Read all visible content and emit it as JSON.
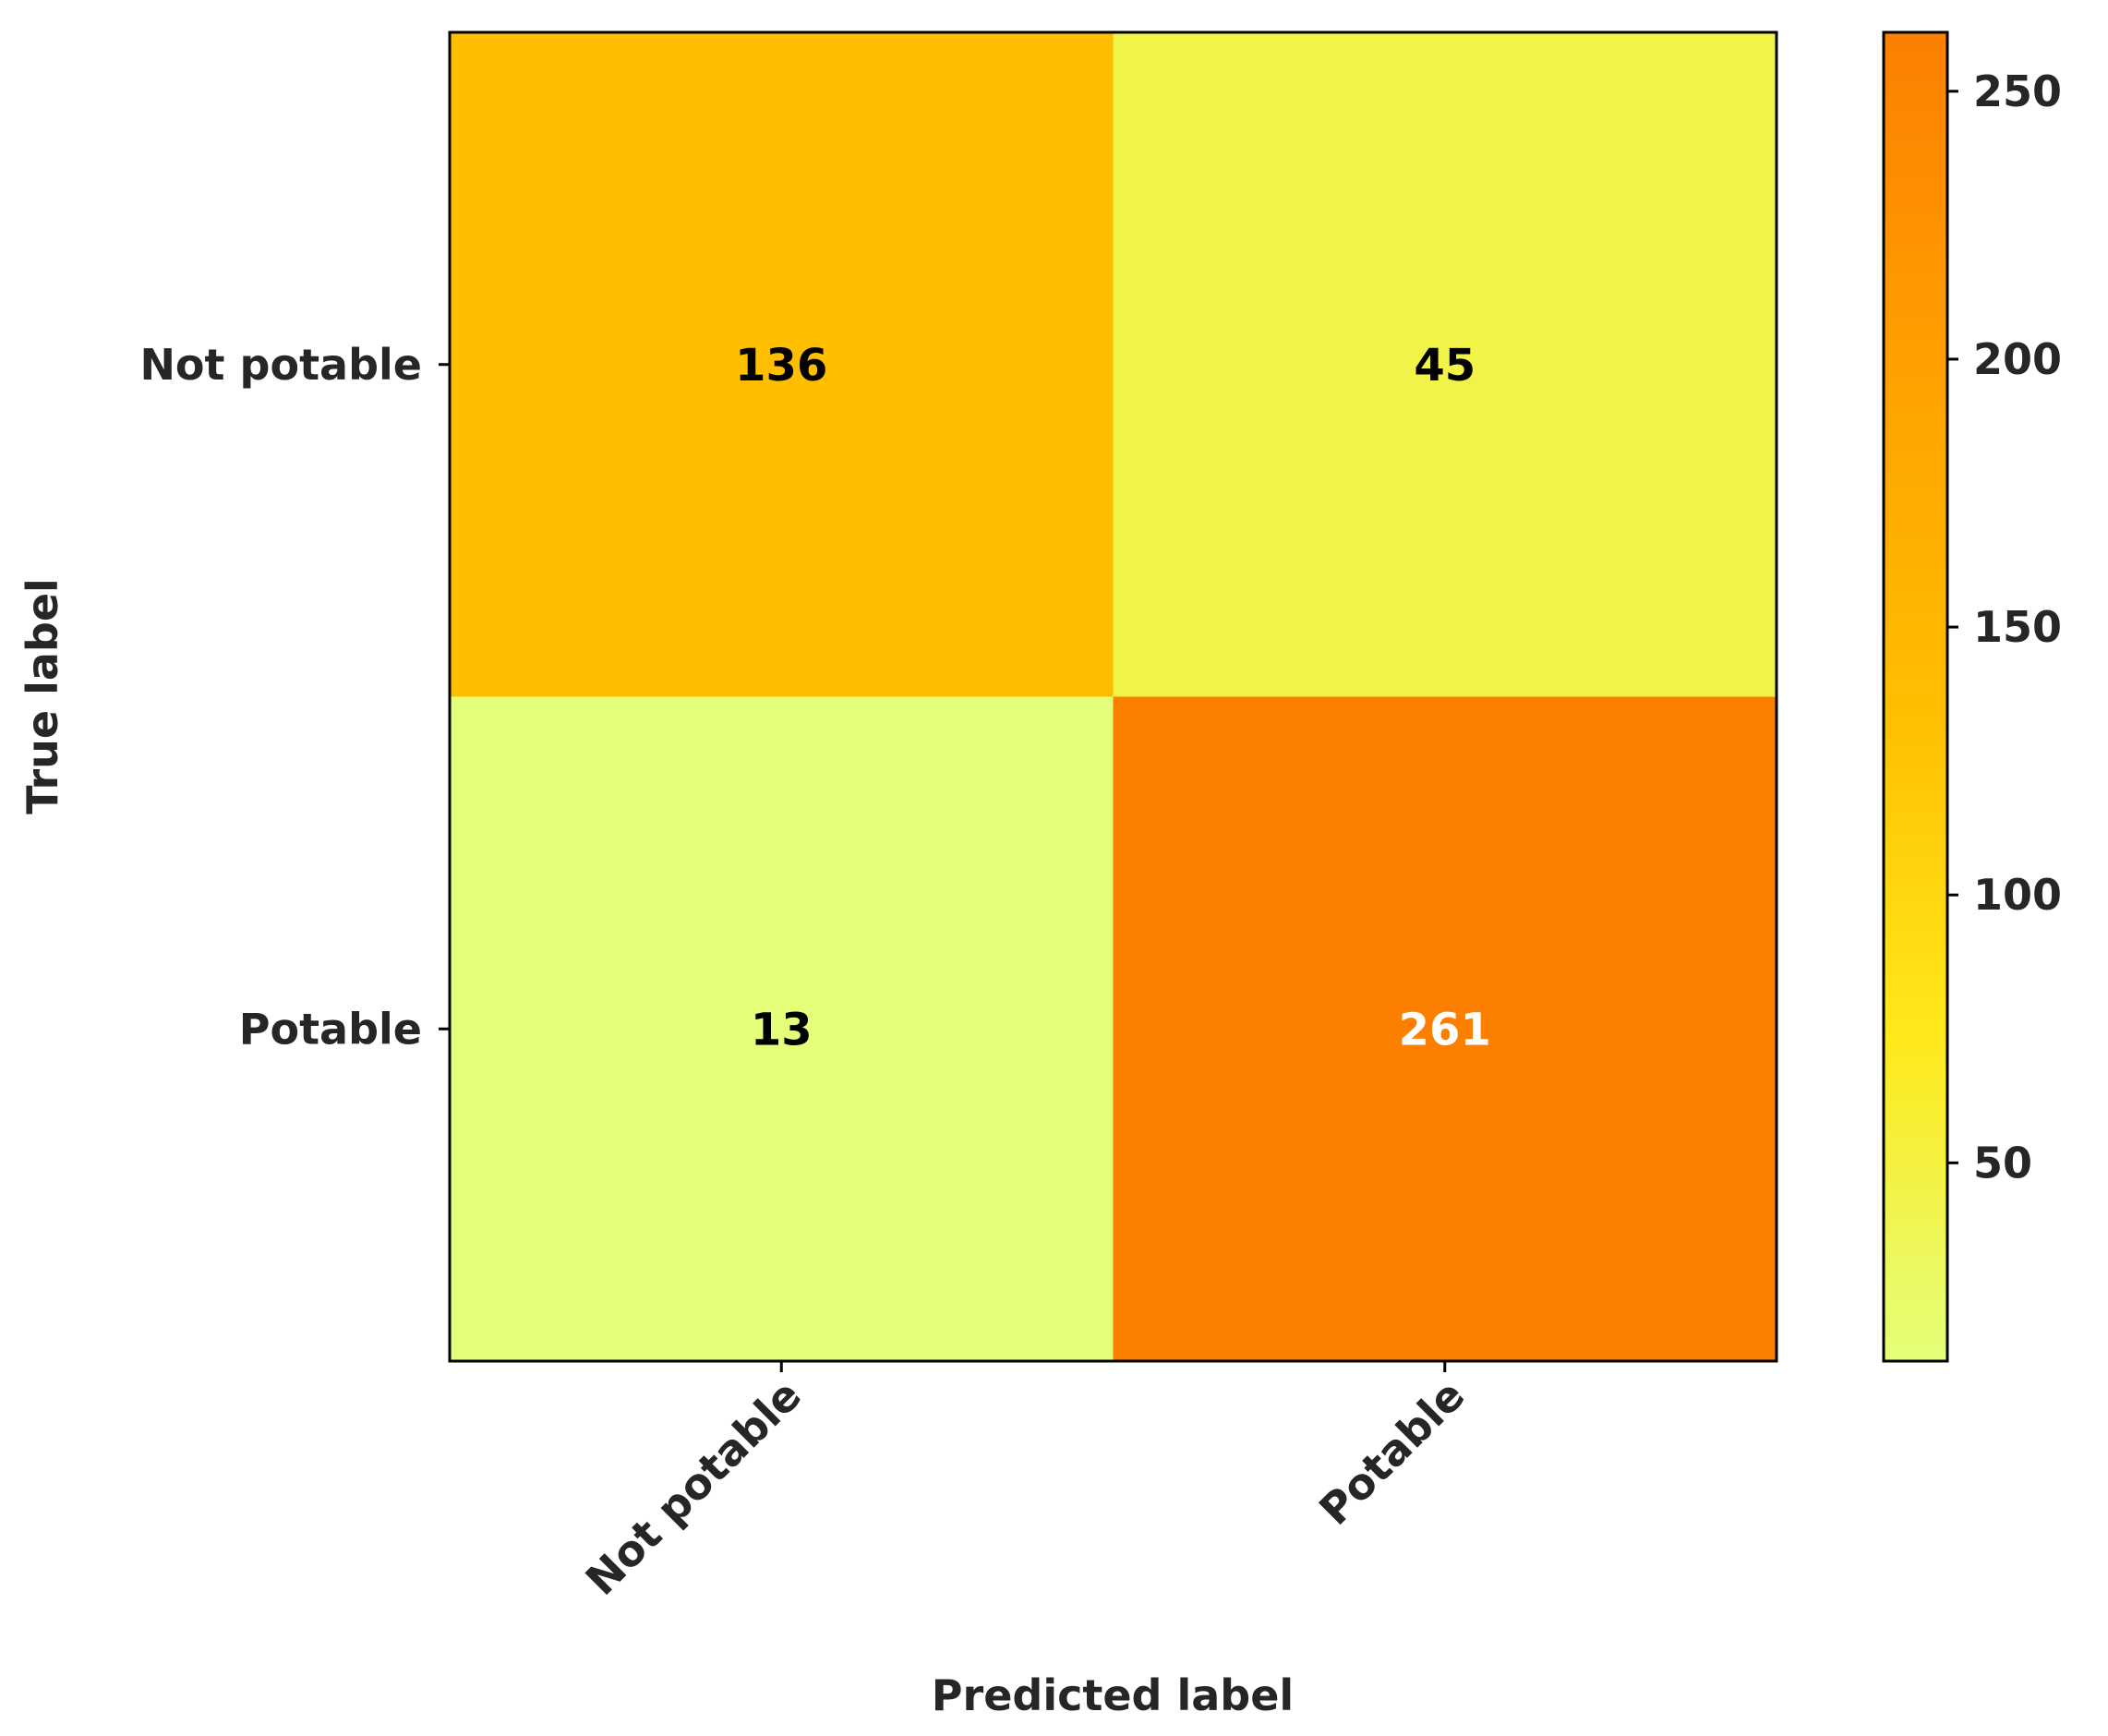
{
  "chart_data": {
    "type": "heatmap",
    "title": "",
    "xlabel": "Predicted label",
    "ylabel": "True label",
    "x_categories": [
      "Not potable",
      "Potable"
    ],
    "y_categories": [
      "Not potable",
      "Potable"
    ],
    "values": [
      [
        136,
        45
      ],
      [
        13,
        261
      ]
    ],
    "colormap": "Wistia",
    "colorbar": {
      "min": 13,
      "max": 261,
      "ticks": [
        50,
        100,
        150,
        200,
        250
      ],
      "colors": [
        "#e4ff7a",
        "#ffe81a",
        "#ffbd00",
        "#ffa000",
        "#fc7f00"
      ]
    },
    "cell_text_colors": {
      "light": "#ffffff",
      "dark": "#000000"
    },
    "grid": false
  }
}
